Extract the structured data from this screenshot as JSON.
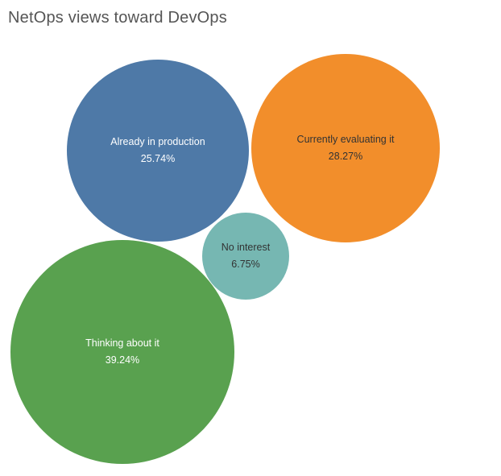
{
  "title": "NetOps views toward DevOps",
  "colors": {
    "background": "#ffffff",
    "title_text": "#555555",
    "light_label_text": "#ffffff",
    "dark_label_text": "#333333"
  },
  "chart_data": {
    "type": "bubble",
    "title": "NetOps views toward DevOps",
    "legend": "none",
    "grid": false,
    "unit": "%",
    "categories": [
      "Already in production",
      "Currently evaluating it",
      "No interest",
      "Thinking about it"
    ],
    "values": [
      25.74,
      28.27,
      6.75,
      39.24
    ],
    "value_labels": [
      "25.74%",
      "28.27%",
      "6.75%",
      "39.24%"
    ],
    "bubbles": [
      {
        "label": "Already in production",
        "value": 25.74,
        "value_label": "25.74%",
        "color": "#4e79a7",
        "text_color": "#ffffff"
      },
      {
        "label": "Currently evaluating it",
        "value": 28.27,
        "value_label": "28.27%",
        "color": "#f28e2b",
        "text_color": "#333333"
      },
      {
        "label": "No interest",
        "value": 6.75,
        "value_label": "6.75%",
        "color": "#76b7b2",
        "text_color": "#333333"
      },
      {
        "label": "Thinking about it",
        "value": 39.24,
        "value_label": "39.24%",
        "color": "#59a14f",
        "text_color": "#ffffff"
      }
    ]
  }
}
